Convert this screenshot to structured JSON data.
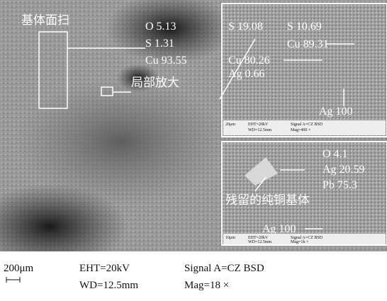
{
  "main": {
    "labels": {
      "area_scan": "基体面扫",
      "o": "O 5.13",
      "s": "S 1.31",
      "cu": "Cu 93.55",
      "zoom": "局部放大"
    }
  },
  "inset1": {
    "labels": [
      "S 19.08",
      "Cu 80.26",
      "Ag 0.66",
      "S 10.69",
      "Cu 89.31",
      "Ag 100"
    ],
    "scale": "20μm",
    "eht": "EHT=20kV",
    "wd": "WD=12.5mm",
    "signal": "Signal A=CZ BSD",
    "mag": "Mag=400 ×"
  },
  "inset2": {
    "labels": [
      "O 4.1",
      "Ag 20.59",
      "Pb 75.3",
      "残留的纯铜基体",
      "Ag 100"
    ],
    "scale": "10μm",
    "eht": "EHT=20kV",
    "wd": "WD=12.5mm",
    "signal": "Signal A=CZ BSD",
    "mag": "Mag=1k ×"
  },
  "footer": {
    "scale": "200μm",
    "eht": "EHT=20kV",
    "wd": "WD=12.5mm",
    "signal": "Signal A=CZ BSD",
    "mag": "Mag=18 ×"
  }
}
